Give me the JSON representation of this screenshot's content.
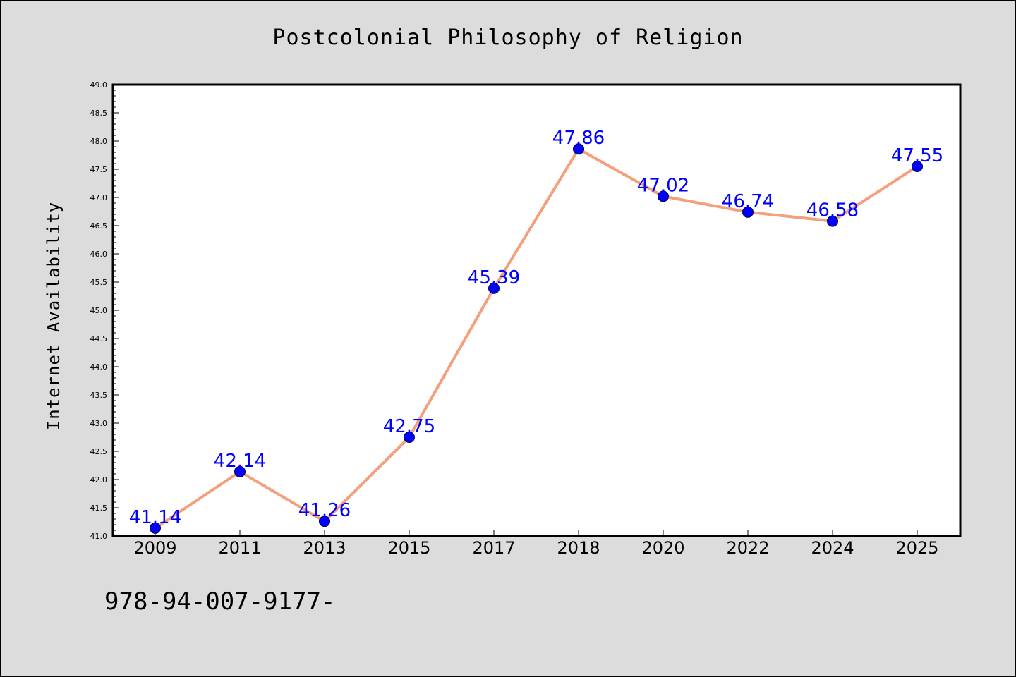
{
  "chart_data": {
    "type": "line",
    "title": "Postcolonial Philosophy of Religion",
    "xlabel": "",
    "ylabel": "Internet Availability",
    "categories": [
      "2009",
      "2011",
      "2013",
      "2015",
      "2017",
      "2018",
      "2020",
      "2022",
      "2024",
      "2025"
    ],
    "series": [
      {
        "values": [
          41.14,
          42.14,
          41.26,
          42.75,
          45.39,
          47.86,
          47.02,
          46.74,
          46.58,
          47.55
        ]
      }
    ],
    "data_labels": [
      "41.14",
      "42.14",
      "41.26",
      "42.75",
      "45.39",
      "47.86",
      "47.02",
      "46.74",
      "46.58",
      "47.55"
    ],
    "ylim": [
      41.0,
      49.0
    ],
    "yticks": [
      "41.0",
      "41.5",
      "42.0",
      "42.5",
      "43.0",
      "43.5",
      "44.0",
      "44.5",
      "45.0",
      "45.5",
      "46.0",
      "46.5",
      "47.0",
      "47.5",
      "48.0",
      "48.5",
      "49.0"
    ],
    "grid": false,
    "legend": "none",
    "colors": {
      "line": "#f4a07e",
      "marker": "#0000ff",
      "data_label": "#0000ff",
      "background": "#dcdcdc",
      "plot_background": "#ffffff"
    }
  },
  "footer_text": "978-94-007-9177-"
}
